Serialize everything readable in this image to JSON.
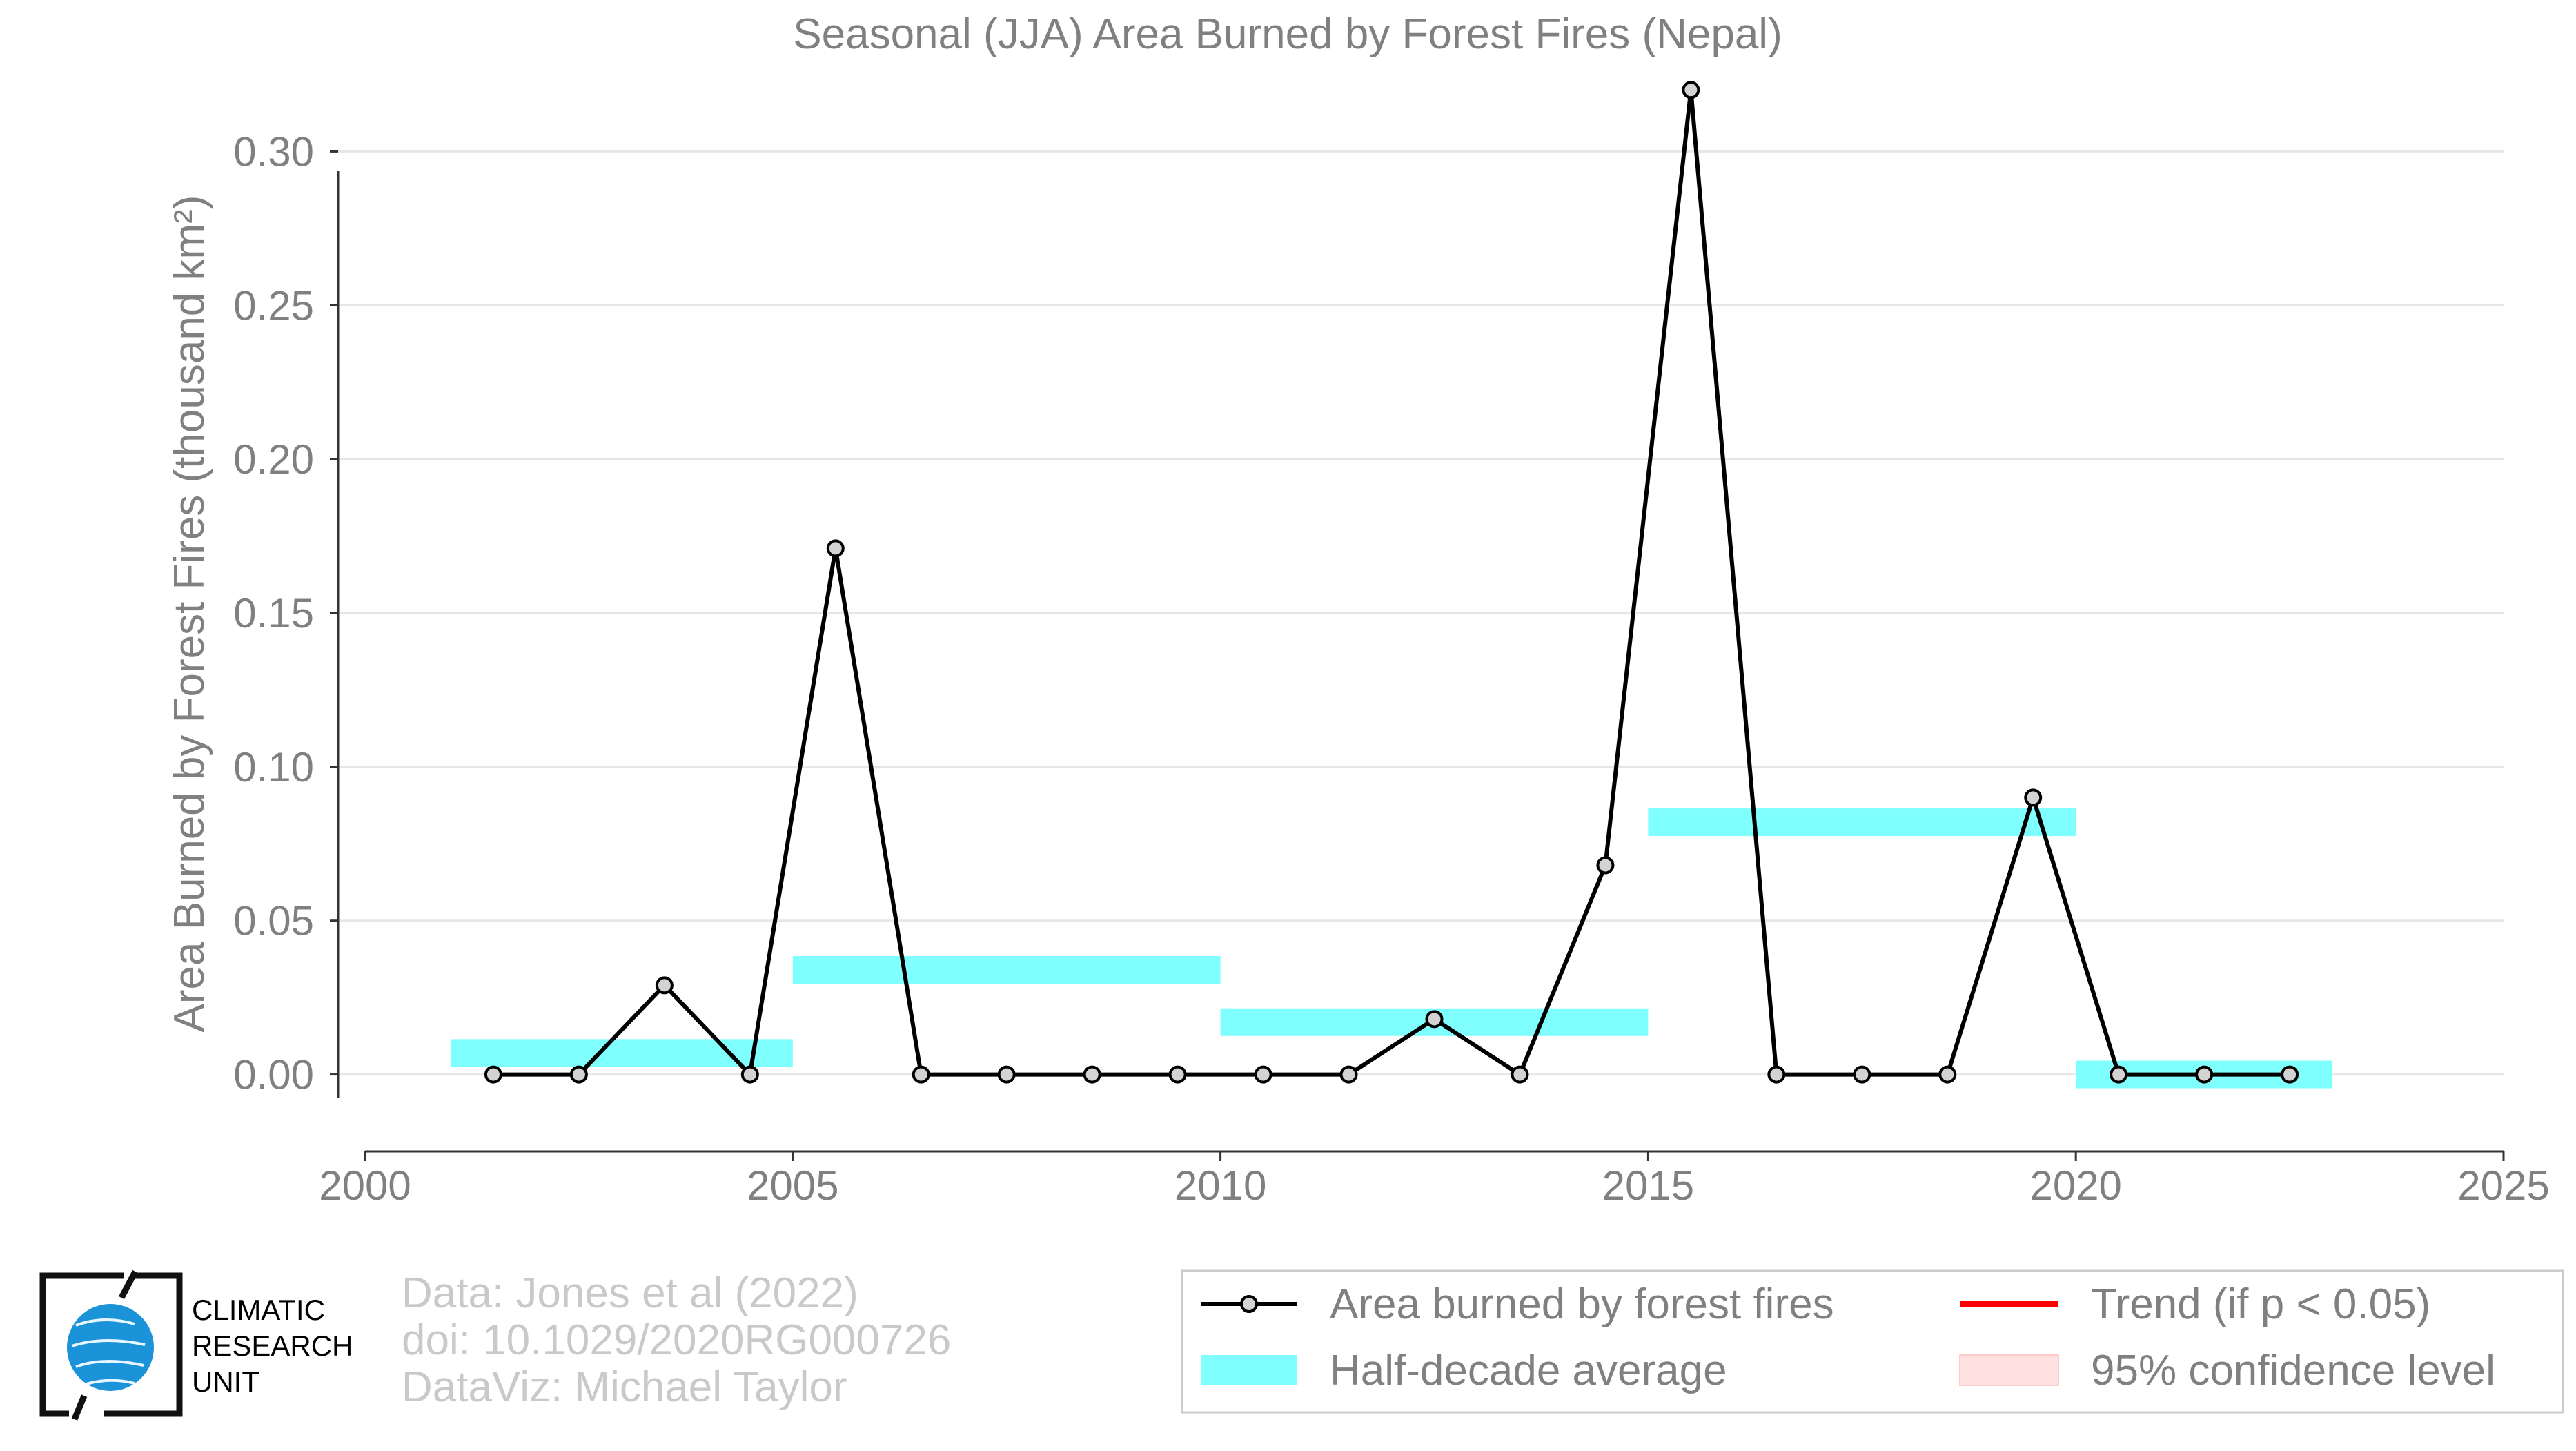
{
  "chart_data": {
    "type": "line",
    "title": "Seasonal (JJA) Area Burned by Forest Fires (Nepal)",
    "xlabel": "",
    "ylabel": "Area Burned by Forest Fires (thousand km²)",
    "xlim": [
      2000,
      2025
    ],
    "ylim": [
      -0.025,
      0.325
    ],
    "x_ticks": [
      2000,
      2005,
      2010,
      2015,
      2020,
      2025
    ],
    "y_ticks": [
      0.0,
      0.05,
      0.1,
      0.15,
      0.2,
      0.25,
      0.3
    ],
    "y_tick_labels": [
      "0.00",
      "0.05",
      "0.10",
      "0.15",
      "0.20",
      "0.25",
      "0.30"
    ],
    "grid": "horizontal",
    "series": [
      {
        "name": "Area burned by forest fires",
        "color": "#000000",
        "marker_fill": "#d3d3d3",
        "x": [
          2001.5,
          2002.5,
          2003.5,
          2004.5,
          2005.5,
          2006.5,
          2007.5,
          2008.5,
          2009.5,
          2010.5,
          2011.5,
          2012.5,
          2013.5,
          2014.5,
          2015.5,
          2016.5,
          2017.5,
          2018.5,
          2019.5,
          2020.5,
          2021.5,
          2022.5
        ],
        "values": [
          0.0,
          0.0,
          0.029,
          0.0,
          0.171,
          0.0,
          0.0,
          0.0,
          0.0,
          0.0,
          0.0,
          0.018,
          0.0,
          0.068,
          0.32,
          0.0,
          0.0,
          0.0,
          0.09,
          0.0,
          0.0,
          0.0
        ]
      }
    ],
    "half_decade_averages": {
      "name": "Half-decade average",
      "color": "#80ffff",
      "segments": [
        {
          "x_start": 2001,
          "x_end": 2005,
          "value": 0.007
        },
        {
          "x_start": 2005,
          "x_end": 2010,
          "value": 0.034
        },
        {
          "x_start": 2010,
          "x_end": 2015,
          "value": 0.017
        },
        {
          "x_start": 2015,
          "x_end": 2020,
          "value": 0.082
        },
        {
          "x_start": 2020,
          "x_end": 2023,
          "value": 0.0
        }
      ]
    },
    "legend": {
      "placement": "bottom-right",
      "items": [
        {
          "label": "Area burned by forest fires",
          "kind": "line-marker",
          "color": "#000000"
        },
        {
          "label": "Trend (if p < 0.05)",
          "kind": "line",
          "color": "#ff0000"
        },
        {
          "label": "Half-decade average",
          "kind": "band",
          "color": "#80ffff"
        },
        {
          "label": "95% confidence level",
          "kind": "band",
          "color": "#ffe0e0"
        }
      ]
    }
  },
  "credits": {
    "data": "Data: Jones et al (2022)",
    "doi": "doi: 10.1029/2020RG000726",
    "dataviz": "DataViz: Michael Taylor"
  },
  "logo": {
    "line1": "CLIMATIC",
    "line2": "RESEARCH",
    "line3": "UNIT"
  }
}
